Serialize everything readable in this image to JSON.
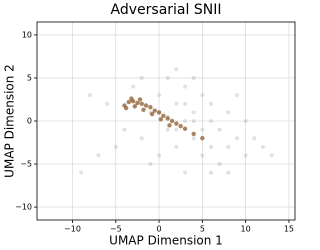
{
  "chart_data": {
    "type": "scatter",
    "title": "Adversarial SNII",
    "xlabel": "UMAP Dimension 1",
    "ylabel": "UMAP Dimension 2",
    "xlim": [
      -14.1,
      15.7
    ],
    "ylim": [
      -11.5,
      11.5
    ],
    "xticks": [
      {
        "value": -10,
        "label": "−10"
      },
      {
        "value": -5,
        "label": "−5"
      },
      0,
      5,
      10,
      15
    ],
    "yticks": [
      {
        "value": -10,
        "label": "−10"
      },
      {
        "value": -5,
        "label": "−5"
      },
      0,
      5,
      10
    ],
    "grid": true,
    "series": [
      {
        "color": "#9a9a9a",
        "x": [
          -8,
          -6,
          -5,
          -4,
          -3,
          -2,
          -1,
          0,
          0,
          1,
          1,
          2,
          2,
          3,
          3,
          3,
          4,
          4,
          5,
          5,
          6,
          6,
          7,
          7,
          8,
          8,
          9,
          10,
          10,
          11,
          12,
          13,
          -9,
          -7,
          4,
          2,
          6,
          9,
          -1,
          1,
          2,
          4,
          5,
          3,
          -2,
          0,
          6,
          8
        ],
        "values": [
          3,
          2,
          -3,
          -1,
          4,
          -2,
          1,
          3,
          -4,
          5,
          -1,
          2,
          -3,
          0,
          4,
          -6,
          1,
          -2,
          3,
          -4,
          0,
          2,
          -1,
          -5,
          1,
          -3,
          -2,
          0,
          -4,
          -2,
          -3,
          -4,
          -6,
          -4,
          5,
          6,
          -6,
          3,
          -5,
          0.5,
          -1,
          0,
          -1,
          2,
          5,
          1,
          -3,
          -6
        ]
      },
      {
        "color": "#8b5a2b",
        "x": [
          -4,
          -3.5,
          -3,
          -2.5,
          -2,
          -1.5,
          -1,
          -0.5,
          0,
          0.5,
          1,
          1.5,
          2,
          2.5,
          3,
          -3.8,
          -2.8,
          -1.8,
          -0.8,
          0.2,
          1.2,
          -3.2,
          -2.2,
          4,
          5
        ],
        "values": [
          1.8,
          2.2,
          2.3,
          2.1,
          2,
          1.8,
          1.6,
          1.2,
          1,
          0.6,
          0.3,
          0,
          -0.3,
          -0.6,
          -0.9,
          1.5,
          1.7,
          1.3,
          0.8,
          0.2,
          -0.5,
          2.6,
          2.5,
          -1.5,
          -2
        ]
      }
    ]
  }
}
